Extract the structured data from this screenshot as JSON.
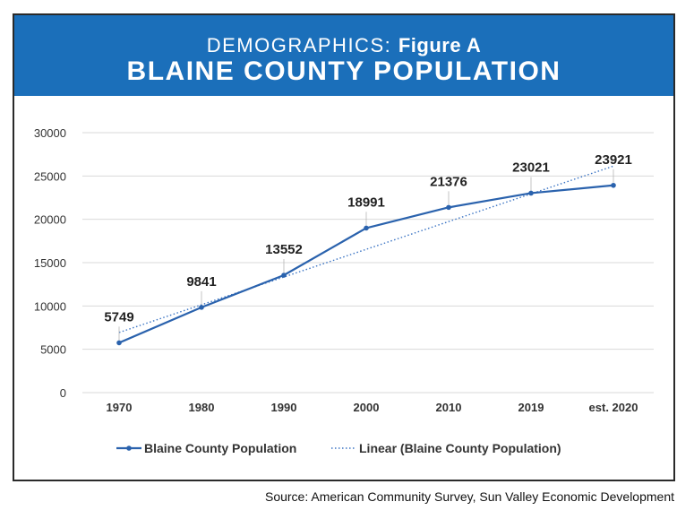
{
  "header": {
    "kicker": "DEMOGRAPHICS:",
    "figure": "Figure A",
    "title": "BLAINE COUNTY POPULATION"
  },
  "source": "Source: American Community Survey, Sun Valley Economic Development",
  "colors": {
    "header_bg": "#1b6fba",
    "series": "#2a62ad",
    "trend": "#3b74c4",
    "grid": "#d9d9d9",
    "axis_text": "#333333"
  },
  "chart_data": {
    "type": "line",
    "title": "",
    "xlabel": "",
    "ylabel": "",
    "categories": [
      "1970",
      "1980",
      "1990",
      "2000",
      "2010",
      "2019",
      "est. 2020"
    ],
    "ylim": [
      0,
      30000
    ],
    "yticks": [
      0,
      5000,
      10000,
      15000,
      20000,
      25000,
      30000
    ],
    "grid": true,
    "legend_position": "bottom",
    "series": [
      {
        "name": "Blaine County Population",
        "values": [
          5749,
          9841,
          13552,
          18991,
          21376,
          23021,
          23921
        ],
        "data_labels": [
          "5749",
          "9841",
          "13552",
          "18991",
          "21376",
          "23021",
          "23921"
        ],
        "style": "solid-markers"
      },
      {
        "name": "Linear (Blaine County Population)",
        "values": [
          6940,
          10140,
          13340,
          16540,
          19740,
          22940,
          26140
        ],
        "style": "dotted"
      }
    ]
  }
}
